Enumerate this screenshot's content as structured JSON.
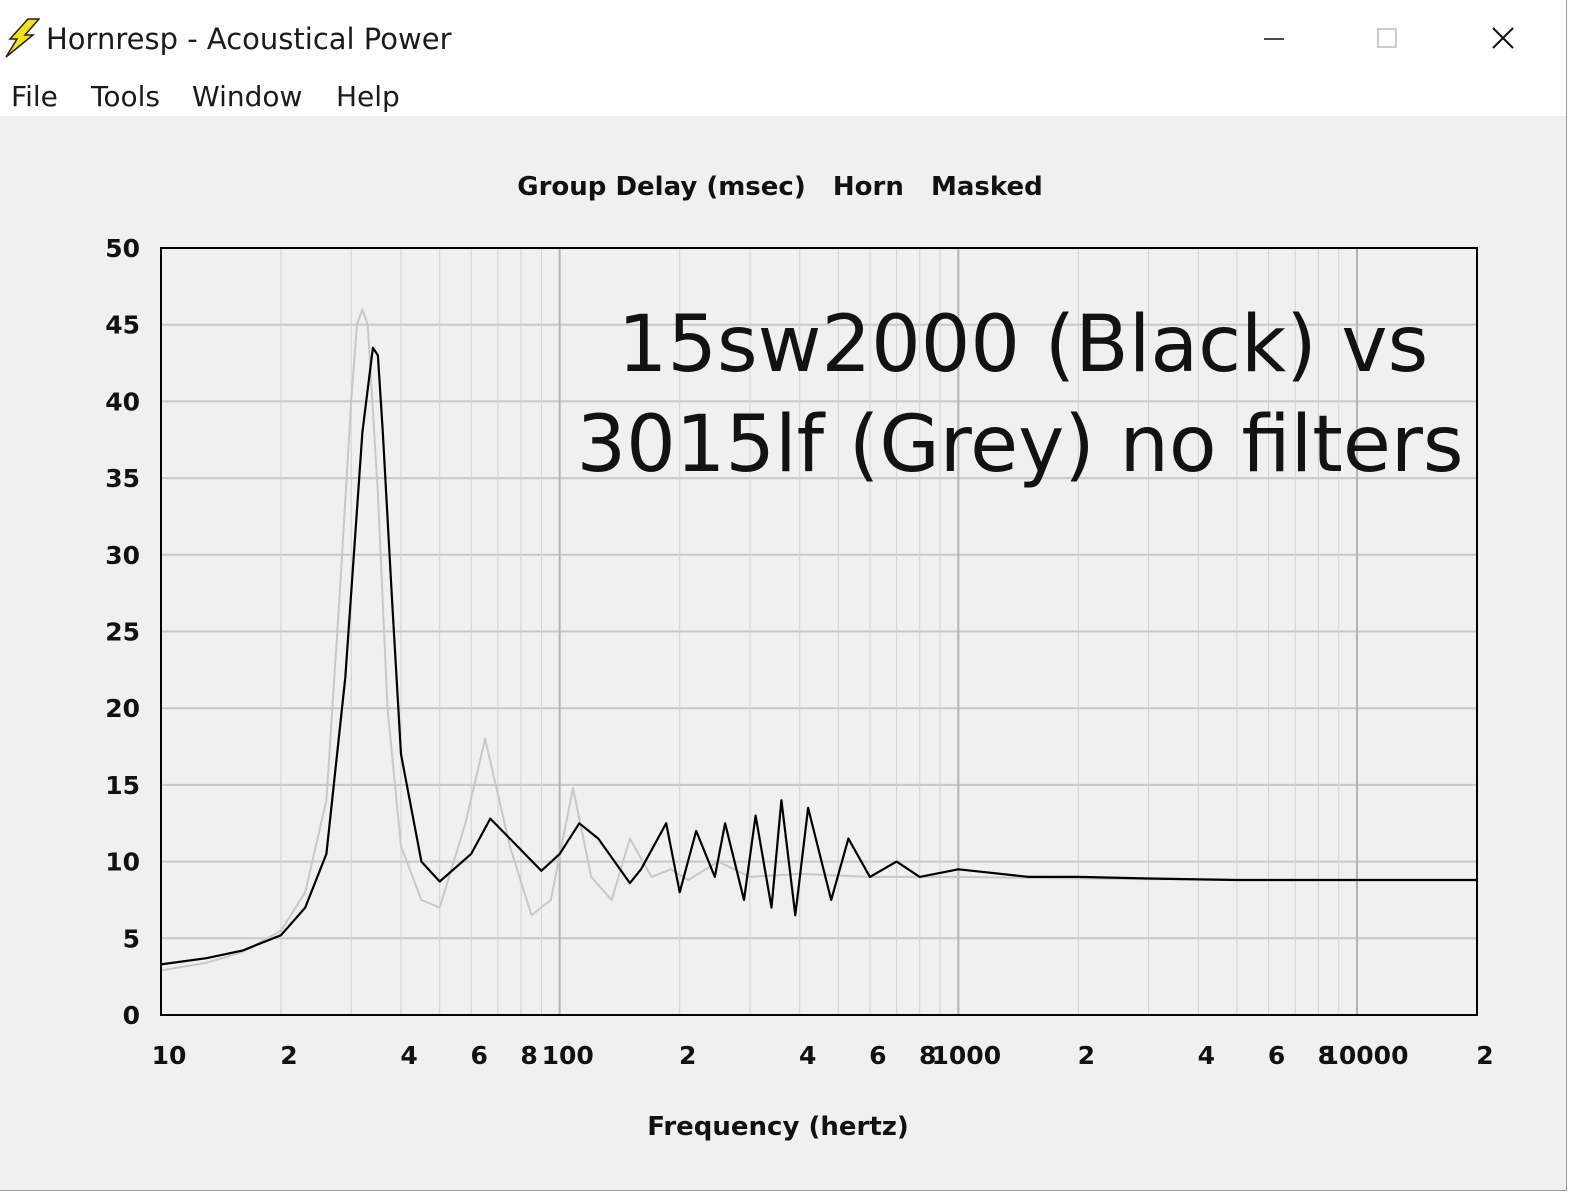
{
  "window": {
    "title": "Hornresp - Acoustical Power",
    "icon": "lightning-icon"
  },
  "caption_buttons": {
    "minimize": "minimize-icon",
    "maximize": "maximize-icon",
    "close": "close-icon"
  },
  "menu": {
    "file": "File",
    "tools": "Tools",
    "window": "Window",
    "help": "Help"
  },
  "chart_data": {
    "type": "line",
    "title": "Group Delay (msec)   Horn   Masked",
    "xlabel": "Frequency (hertz)",
    "ylabel": "",
    "x_scale": "log",
    "xlim": [
      10,
      20000
    ],
    "ylim": [
      0,
      50
    ],
    "y_ticks": [
      "0",
      "5",
      "10",
      "15",
      "20",
      "25",
      "30",
      "35",
      "40",
      "45",
      "50"
    ],
    "x_tick_labels": [
      {
        "value": 10,
        "label": "10"
      },
      {
        "value": 20,
        "label": "2"
      },
      {
        "value": 40,
        "label": "4"
      },
      {
        "value": 60,
        "label": "6"
      },
      {
        "value": 80,
        "label": "8"
      },
      {
        "value": 100,
        "label": "100"
      },
      {
        "value": 200,
        "label": "2"
      },
      {
        "value": 400,
        "label": "4"
      },
      {
        "value": 600,
        "label": "6"
      },
      {
        "value": 800,
        "label": "8"
      },
      {
        "value": 1000,
        "label": "1000"
      },
      {
        "value": 2000,
        "label": "2"
      },
      {
        "value": 4000,
        "label": "4"
      },
      {
        "value": 6000,
        "label": "6"
      },
      {
        "value": 8000,
        "label": "8"
      },
      {
        "value": 10000,
        "label": "10000"
      },
      {
        "value": 20000,
        "label": "2"
      }
    ],
    "grid": true,
    "annotation": [
      "15sw2000 (Black) vs",
      "3015lf (Grey) no filters"
    ],
    "colors": {
      "black_series": "#000000",
      "grey_series": "#c8c8c8",
      "grid": "#c8c8c8"
    },
    "series": [
      {
        "color": "#000000",
        "x": [
          10,
          13,
          16,
          20,
          23,
          26,
          29,
          32,
          34,
          35,
          36,
          38,
          40,
          45,
          50,
          60,
          67,
          75,
          90,
          100,
          112,
          125,
          150,
          160,
          185,
          200,
          220,
          245,
          260,
          290,
          310,
          340,
          360,
          390,
          420,
          480,
          530,
          600,
          700,
          800,
          1000,
          1500,
          2000,
          3000,
          5000,
          8000,
          12000,
          20000
        ],
        "y": [
          3.3,
          3.7,
          4.2,
          5.2,
          7.0,
          10.5,
          22,
          38,
          43.5,
          43,
          38,
          27,
          17,
          10,
          8.7,
          10.5,
          12.8,
          11.5,
          9.4,
          10.5,
          12.5,
          11.5,
          8.6,
          9.5,
          12.5,
          8.0,
          12.0,
          9.0,
          12.5,
          7.5,
          13.0,
          7.0,
          14.0,
          6.5,
          13.5,
          7.5,
          11.5,
          9.0,
          10.0,
          9.0,
          9.5,
          9.0,
          9.0,
          8.9,
          8.8,
          8.8,
          8.8,
          8.8
        ]
      },
      {
        "color": "#c8c8c8",
        "x": [
          10,
          13,
          16,
          20,
          23,
          26,
          28,
          30,
          31,
          32,
          33,
          35,
          37,
          40,
          45,
          50,
          58,
          65,
          75,
          85,
          95,
          108,
          120,
          135,
          150,
          170,
          190,
          210,
          250,
          300,
          400,
          600,
          1000,
          2000,
          5000,
          20000
        ],
        "y": [
          2.9,
          3.4,
          4.1,
          5.5,
          8.0,
          14,
          27,
          40,
          45,
          46,
          45,
          34,
          20,
          11,
          7.5,
          7.0,
          12.5,
          18,
          11,
          6.5,
          7.5,
          14.8,
          9.0,
          7.5,
          11.5,
          9.0,
          9.5,
          8.8,
          10.0,
          9.0,
          9.2,
          9.0,
          9.0,
          8.9,
          8.8,
          8.8
        ]
      }
    ]
  }
}
